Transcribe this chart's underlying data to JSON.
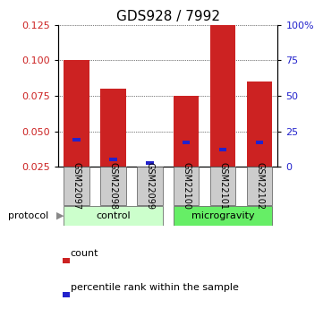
{
  "title": "GDS928 / 7992",
  "samples": [
    "GSM22097",
    "GSM22098",
    "GSM22099",
    "GSM22100",
    "GSM22101",
    "GSM22102"
  ],
  "red_values": [
    0.1,
    0.08,
    0.025,
    0.075,
    0.125,
    0.085
  ],
  "blue_values": [
    0.044,
    0.03,
    0.028,
    0.042,
    0.037,
    0.042
  ],
  "ylim_left": [
    0.025,
    0.125
  ],
  "yticks_left": [
    0.025,
    0.05,
    0.075,
    0.1,
    0.125
  ],
  "ylim_right": [
    0,
    100
  ],
  "yticks_right": [
    0,
    25,
    50,
    75,
    100
  ],
  "ytick_labels_right": [
    "0",
    "25",
    "50",
    "75",
    "100%"
  ],
  "protocol_groups": [
    {
      "label": "control",
      "indices": [
        0,
        1,
        2
      ],
      "color": "#ccffcc"
    },
    {
      "label": "microgravity",
      "indices": [
        3,
        4,
        5
      ],
      "color": "#66ee66"
    }
  ],
  "bar_color": "#cc2222",
  "blue_color": "#2222cc",
  "bar_width": 0.7,
  "grid_color": "black",
  "legend_items": [
    {
      "label": "count",
      "color": "#cc2222"
    },
    {
      "label": "percentile rank within the sample",
      "color": "#2222cc"
    }
  ],
  "protocol_label": "protocol",
  "background_color": "#ffffff",
  "tick_label_color_left": "#cc2222",
  "tick_label_color_right": "#2222cc",
  "title_fontsize": 11,
  "tick_fontsize": 8,
  "sample_fontsize": 7,
  "legend_fontsize": 8,
  "protocol_fontsize": 9,
  "gray_color": "#cccccc"
}
